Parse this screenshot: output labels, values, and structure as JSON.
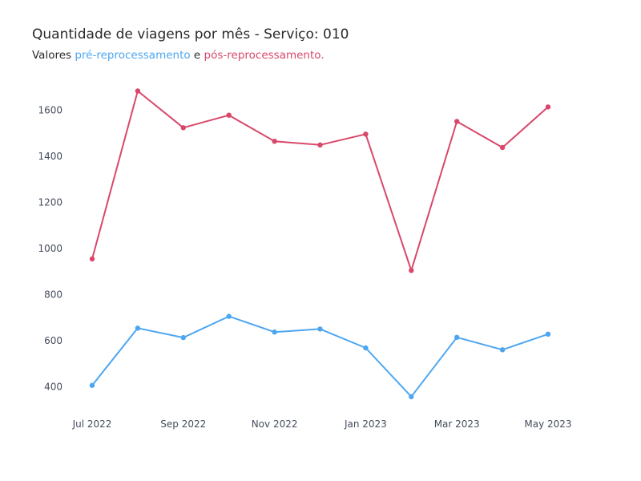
{
  "title": "Quantidade de viagens por mês - Serviço: 010",
  "subtitle": {
    "prefix": "Valores ",
    "pre_label": "pré-reprocessamento",
    "middle": " e ",
    "post_label": "pós-reprocessamento",
    "suffix": "."
  },
  "colors": {
    "pre": "#4da6f0",
    "post": "#d9486a"
  },
  "chart_data": {
    "type": "line",
    "title": "Quantidade de viagens por mês - Serviço: 010",
    "x": [
      "2022-07",
      "2022-08",
      "2022-09",
      "2022-10",
      "2022-11",
      "2022-12",
      "2023-01",
      "2023-02",
      "2023-03",
      "2023-04",
      "2023-05"
    ],
    "x_tick_labels": [
      {
        "x": "2022-07",
        "label": "Jul 2022"
      },
      {
        "x": "2022-09",
        "label": "Sep 2022"
      },
      {
        "x": "2022-11",
        "label": "Nov 2022"
      },
      {
        "x": "2023-01",
        "label": "Jan 2023"
      },
      {
        "x": "2023-03",
        "label": "Mar 2023"
      },
      {
        "x": "2023-05",
        "label": "May 2023"
      }
    ],
    "y_ticks": [
      400,
      600,
      800,
      1000,
      1200,
      1400,
      1600
    ],
    "ylim": [
      305,
      1730
    ],
    "grid": false,
    "series": [
      {
        "key": "pre",
        "values": [
          407,
          655,
          614,
          706,
          638,
          651,
          569,
          358,
          615,
          561,
          629
        ]
      },
      {
        "key": "post",
        "values": [
          955,
          1683,
          1524,
          1578,
          1465,
          1449,
          1496,
          905,
          1551,
          1438,
          1614
        ]
      }
    ]
  }
}
